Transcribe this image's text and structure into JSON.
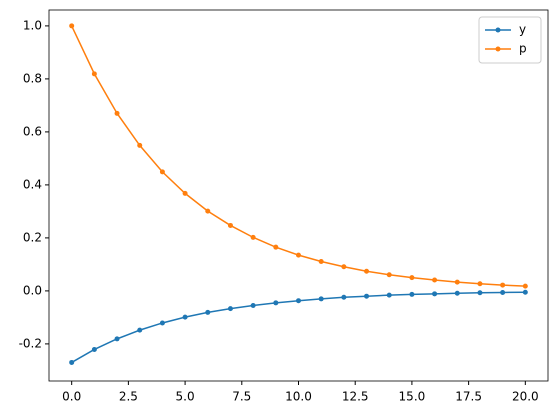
{
  "chart_data": {
    "type": "line",
    "x": [
      0,
      1,
      2,
      3,
      4,
      5,
      6,
      7,
      8,
      9,
      10,
      11,
      12,
      13,
      14,
      15,
      16,
      17,
      18,
      19,
      20
    ],
    "series": [
      {
        "name": "y",
        "color": "#1f77b4",
        "values": [
          -0.27,
          -0.221,
          -0.181,
          -0.148,
          -0.121,
          -0.099,
          -0.081,
          -0.067,
          -0.055,
          -0.045,
          -0.037,
          -0.03,
          -0.024,
          -0.02,
          -0.016,
          -0.013,
          -0.011,
          -0.009,
          -0.007,
          -0.006,
          -0.005
        ]
      },
      {
        "name": "p",
        "color": "#ff7f0e",
        "values": [
          1.0,
          0.819,
          0.67,
          0.549,
          0.449,
          0.368,
          0.301,
          0.247,
          0.202,
          0.165,
          0.135,
          0.111,
          0.091,
          0.074,
          0.061,
          0.05,
          0.041,
          0.033,
          0.027,
          0.022,
          0.018
        ]
      }
    ],
    "xlim": [
      -1,
      21
    ],
    "xticks": [
      {
        "value": 0,
        "label": "0.0"
      },
      2.5,
      {
        "value": 5,
        "label": "5.0"
      },
      7.5,
      {
        "value": 10,
        "label": "10.0"
      },
      12.5,
      {
        "value": 15,
        "label": "15.0"
      },
      17.5,
      {
        "value": 20,
        "label": "20.0"
      }
    ],
    "ylim": [
      -0.34,
      1.06
    ],
    "yticks": [
      -0.2,
      {
        "value": 0,
        "label": "0.0"
      },
      0.2,
      0.4,
      0.6,
      0.8,
      {
        "value": 1,
        "label": "1.0"
      }
    ],
    "grid": false,
    "legend": "upper right"
  }
}
